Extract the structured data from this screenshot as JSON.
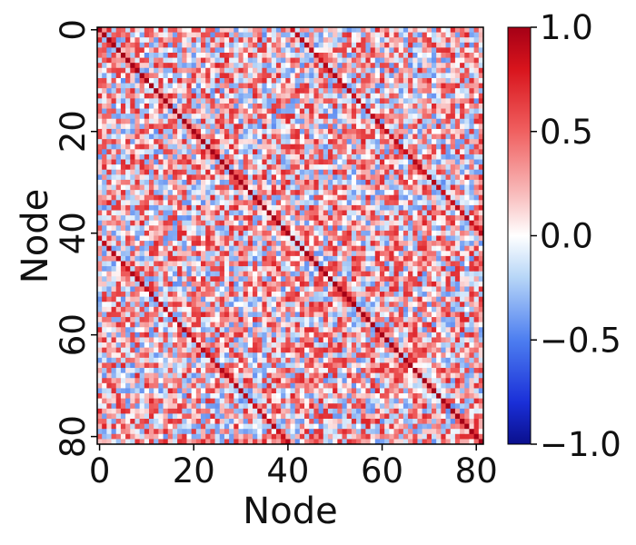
{
  "chart_data": {
    "type": "heatmap",
    "title": "",
    "xlabel": "Node",
    "ylabel": "Node",
    "n_nodes": 82,
    "x_ticks": [
      0,
      20,
      40,
      60,
      80
    ],
    "y_ticks": [
      0,
      20,
      40,
      60,
      80
    ],
    "x_tick_labels": [
      "0",
      "20",
      "40",
      "60",
      "80"
    ],
    "y_tick_labels": [
      "0",
      "20",
      "40",
      "60",
      "80"
    ],
    "colorbar": {
      "min": -1.0,
      "max": 1.0,
      "ticks": [
        1.0,
        0.5,
        0.0,
        -0.5,
        -1.0
      ],
      "tick_labels": [
        "1.0",
        "0.5",
        "0.0",
        "−0.5",
        "−1.0"
      ]
    },
    "colormap": "coolwarm-like (blue-white-red)",
    "colors": {
      "negative": "#0a0f8c",
      "neutral": "#ffffff",
      "positive": "#a50016"
    },
    "matrix_description": {
      "main_diagonal_value": 1.0,
      "offdiagonal_band_offset": 41,
      "offdiagonal_band_value": 0.9,
      "background_range": [
        -0.45,
        0.6
      ],
      "background_mean": 0.15
    },
    "grid": false
  }
}
